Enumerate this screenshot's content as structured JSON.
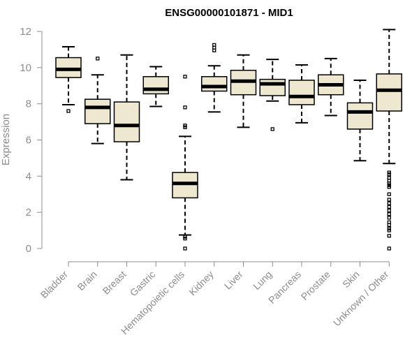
{
  "chart_data": {
    "type": "boxplot",
    "title": "ENSG00000101871 - MID1",
    "ylabel": "Expression",
    "xlabel": "",
    "ylim": [
      0,
      12
    ],
    "yticks": [
      0,
      2,
      4,
      6,
      8,
      10,
      12
    ],
    "colors": {
      "box_fill": "#efe8d0",
      "box_stroke": "#000000",
      "axis": "#8c8c8c"
    },
    "categories": [
      "Bladder",
      "Brain",
      "Breast",
      "Gastric",
      "Hematopoietic cells",
      "Kidney",
      "Liver",
      "Lung",
      "Pancreas",
      "Prostate",
      "Skin",
      "Unknown / Other"
    ],
    "boxes": [
      {
        "category": "Bladder",
        "whisker_low": 7.95,
        "q1": 9.45,
        "median": 9.9,
        "q3": 10.55,
        "whisker_high": 11.15,
        "outliers": [
          7.6
        ]
      },
      {
        "category": "Brain",
        "whisker_low": 5.8,
        "q1": 6.9,
        "median": 7.8,
        "q3": 8.25,
        "whisker_high": 9.6,
        "outliers": [
          10.5
        ]
      },
      {
        "category": "Breast",
        "whisker_low": 3.8,
        "q1": 5.9,
        "median": 6.8,
        "q3": 8.1,
        "whisker_high": 10.7,
        "outliers": []
      },
      {
        "category": "Gastric",
        "whisker_low": 7.85,
        "q1": 8.55,
        "median": 8.8,
        "q3": 9.5,
        "whisker_high": 10.05,
        "outliers": []
      },
      {
        "category": "Hematopoietic cells",
        "whisker_low": 0.75,
        "q1": 2.8,
        "median": 3.6,
        "q3": 4.2,
        "whisker_high": 6.2,
        "outliers": [
          9.5,
          7.8,
          6.8,
          6.7,
          0.65,
          0.55,
          0.0
        ]
      },
      {
        "category": "Kidney",
        "whisker_low": 7.55,
        "q1": 8.7,
        "median": 8.95,
        "q3": 9.5,
        "whisker_high": 10.1,
        "outliers": [
          11.25,
          11.1,
          10.95
        ]
      },
      {
        "category": "Liver",
        "whisker_low": 6.7,
        "q1": 8.5,
        "median": 9.25,
        "q3": 9.85,
        "whisker_high": 10.7,
        "outliers": []
      },
      {
        "category": "Lung",
        "whisker_low": 8.15,
        "q1": 8.45,
        "median": 9.1,
        "q3": 9.35,
        "whisker_high": 10.45,
        "outliers": [
          6.6
        ]
      },
      {
        "category": "Pancreas",
        "whisker_low": 6.95,
        "q1": 7.95,
        "median": 8.4,
        "q3": 9.3,
        "whisker_high": 10.15,
        "outliers": []
      },
      {
        "category": "Prostate",
        "whisker_low": 7.35,
        "q1": 8.5,
        "median": 9.05,
        "q3": 9.6,
        "whisker_high": 10.5,
        "outliers": []
      },
      {
        "category": "Skin",
        "whisker_low": 4.85,
        "q1": 6.6,
        "median": 7.55,
        "q3": 8.05,
        "whisker_high": 9.3,
        "outliers": []
      },
      {
        "category": "Unknown / Other",
        "whisker_low": 4.7,
        "q1": 7.6,
        "median": 8.75,
        "q3": 9.65,
        "whisker_high": 12.1,
        "outliers": [
          4.2,
          4.1,
          3.9,
          3.75,
          3.6,
          3.5,
          3.4,
          3.0,
          2.7,
          2.5,
          2.3,
          2.1,
          1.9,
          1.7,
          1.45,
          1.3,
          1.1,
          1.0,
          0.7,
          0.0
        ]
      }
    ]
  }
}
